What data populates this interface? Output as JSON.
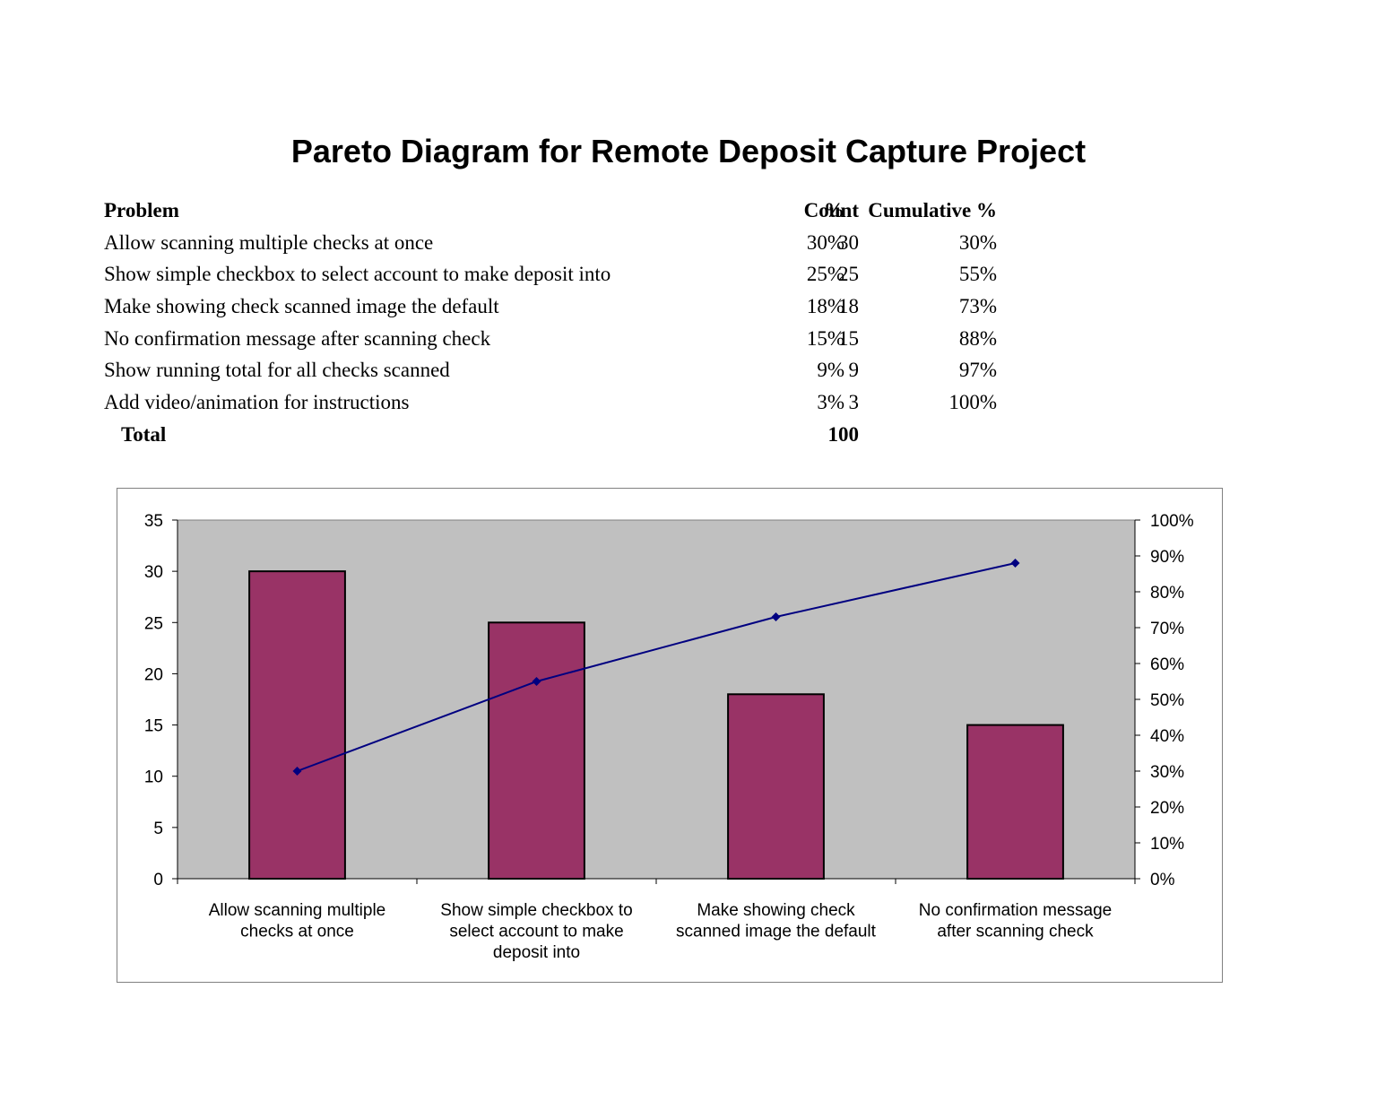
{
  "title": "Pareto Diagram for Remote Deposit Capture Project",
  "table": {
    "headers": {
      "problem": "Problem",
      "count": "Count",
      "pct": "%",
      "cumulative": "Cumulative %"
    },
    "rows": [
      {
        "problem": "Allow scanning multiple checks at once",
        "count": "30",
        "pct": "30%",
        "cumulative": "30%"
      },
      {
        "problem": "Show simple checkbox to select account to make deposit into",
        "count": "25",
        "pct": "25%",
        "cumulative": "55%"
      },
      {
        "problem": "Make showing check scanned image the default",
        "count": "18",
        "pct": "18%",
        "cumulative": "73%"
      },
      {
        "problem": "No confirmation message after scanning check",
        "count": "15",
        "pct": "15%",
        "cumulative": "88%"
      },
      {
        "problem": "Show running total for all checks scanned",
        "count": "9",
        "pct": "9%",
        "cumulative": "97%"
      },
      {
        "problem": "Add video/animation for instructions",
        "count": "3",
        "pct": "3%",
        "cumulative": "100%"
      }
    ],
    "total_label": "Total",
    "total_value": "100"
  },
  "chart_data": {
    "type": "bar",
    "categories": [
      [
        "Allow scanning multiple",
        "checks at once"
      ],
      [
        "Show simple checkbox to",
        "select account to make",
        "deposit into"
      ],
      [
        "Make showing check",
        "scanned image the default"
      ],
      [
        "No confirmation message",
        "after scanning check"
      ]
    ],
    "series": [
      {
        "name": "Count",
        "type": "bar",
        "axis": "left",
        "values": [
          30,
          25,
          18,
          15
        ],
        "color": "#993366"
      },
      {
        "name": "Cumulative %",
        "type": "line",
        "axis": "right",
        "values": [
          0.3,
          0.55,
          0.73,
          0.88
        ],
        "color": "#000080"
      }
    ],
    "ylim": [
      0,
      35
    ],
    "yticks": [
      0,
      5,
      10,
      15,
      20,
      25,
      30,
      35
    ],
    "y2lim": [
      0,
      1
    ],
    "y2ticks": [
      "0%",
      "10%",
      "20%",
      "30%",
      "40%",
      "50%",
      "60%",
      "70%",
      "80%",
      "90%",
      "100%"
    ],
    "plot_background": "#c0c0c0",
    "grid": false
  }
}
